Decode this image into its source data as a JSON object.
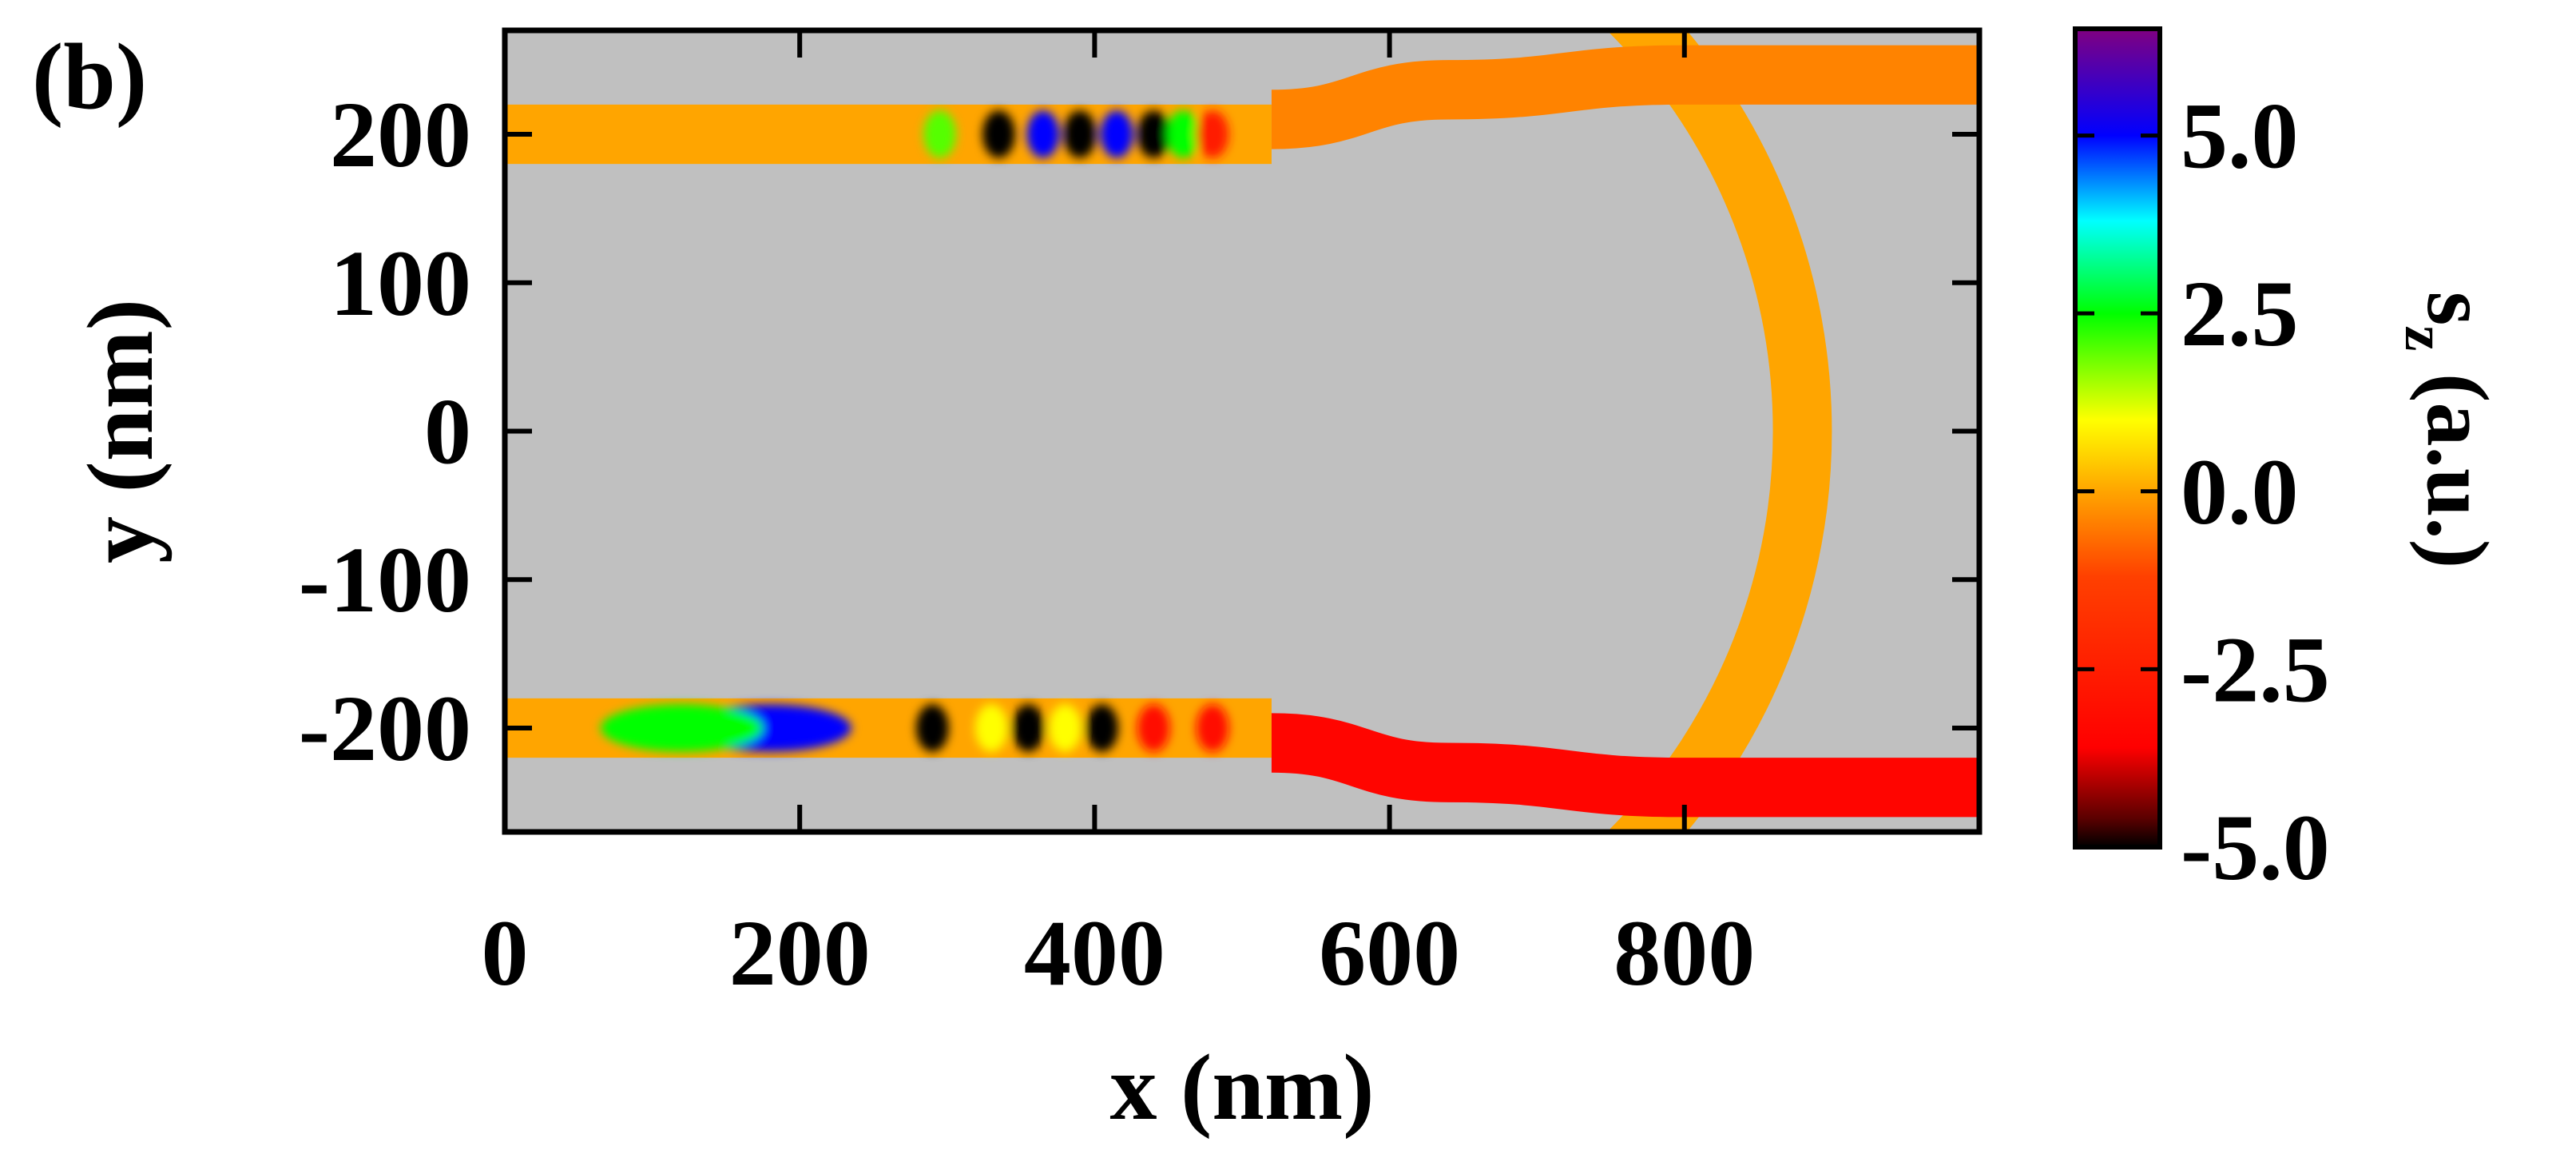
{
  "panel_label": "(b)",
  "chart_data": {
    "type": "heatmap",
    "xlabel": "x (nm)",
    "ylabel": "y (nm)",
    "xlim": [
      0,
      1000
    ],
    "ylim": [
      -270,
      270
    ],
    "x_ticks": [
      0,
      200,
      400,
      600,
      800
    ],
    "y_ticks": [
      200,
      100,
      0,
      -100,
      -200
    ],
    "background_color": "#c0c0c0",
    "colorbar": {
      "label_main": "s",
      "label_sub": "z",
      "label_rest": " (a.u.)",
      "range": [
        -5.0,
        6.5
      ],
      "ticks": [
        5.0,
        2.5,
        0.0,
        -2.5,
        -5.0
      ],
      "tick_labels": [
        "5.0",
        "2.5",
        "0.0",
        "-2.5",
        "-5.0"
      ],
      "stops": [
        {
          "v": -5.0,
          "color": "#000000"
        },
        {
          "v": -4.6,
          "color": "#5a0000"
        },
        {
          "v": -3.6,
          "color": "#ff0000"
        },
        {
          "v": -1.2,
          "color": "#ff4000"
        },
        {
          "v": 0.0,
          "color": "#ffa500"
        },
        {
          "v": 1.0,
          "color": "#ffff00"
        },
        {
          "v": 2.5,
          "color": "#00ff00"
        },
        {
          "v": 3.8,
          "color": "#00ffff"
        },
        {
          "v": 5.0,
          "color": "#0000ff"
        },
        {
          "v": 6.5,
          "color": "#800080"
        }
      ]
    },
    "waveguides": {
      "top_input": {
        "x": [
          0,
          520
        ],
        "y_center": 200,
        "width": 40
      },
      "bottom_input": {
        "x": [
          0,
          520
        ],
        "y_center": -200,
        "width": 40
      },
      "ring": {
        "center": [
          480,
          0
        ],
        "r_inner": 380,
        "r_outer": 420
      },
      "top_output": {
        "points": [
          [
            520,
            210
          ],
          [
            640,
            230
          ],
          [
            800,
            240
          ],
          [
            1000,
            240
          ]
        ],
        "width": 40
      },
      "bottom_output": {
        "points": [
          [
            520,
            -210
          ],
          [
            640,
            -230
          ],
          [
            800,
            -240
          ],
          [
            1000,
            -240
          ]
        ],
        "width": 40
      }
    },
    "field_hotspots": [
      {
        "x": 295,
        "y": 200,
        "value": 2.0
      },
      {
        "x": 335,
        "y": 200,
        "value": -5.0
      },
      {
        "x": 365,
        "y": 200,
        "value": 5.0
      },
      {
        "x": 390,
        "y": 200,
        "value": -5.0
      },
      {
        "x": 415,
        "y": 200,
        "value": 5.0
      },
      {
        "x": 440,
        "y": 200,
        "value": -5.0
      },
      {
        "x": 460,
        "y": 200,
        "value": 2.5
      },
      {
        "x": 480,
        "y": 200,
        "value": -2.5
      },
      {
        "x": 180,
        "y": -200,
        "value": 5.0
      },
      {
        "x": 120,
        "y": -200,
        "value": 2.5
      },
      {
        "x": 290,
        "y": -200,
        "value": -5.0
      },
      {
        "x": 330,
        "y": -200,
        "value": 1.0
      },
      {
        "x": 355,
        "y": -200,
        "value": -5.0
      },
      {
        "x": 380,
        "y": -200,
        "value": 1.0
      },
      {
        "x": 405,
        "y": -200,
        "value": -5.0
      },
      {
        "x": 440,
        "y": -200,
        "value": -3.0
      },
      {
        "x": 480,
        "y": -200,
        "value": -3.0
      }
    ]
  }
}
